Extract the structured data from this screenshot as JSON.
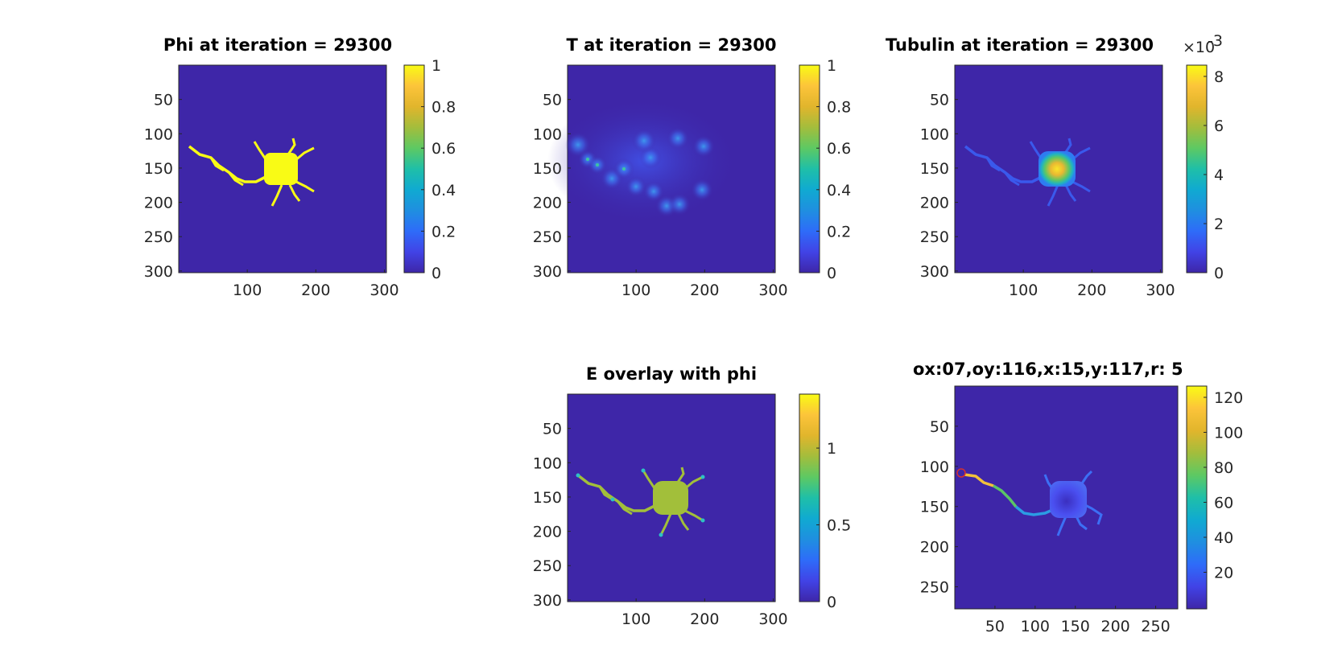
{
  "figure": {
    "background": "#ffffff",
    "colormap_parula": [
      "#3e26a8",
      "#4143e6",
      "#2e6cf9",
      "#1f8fe0",
      "#10aad1",
      "#1fbfa8",
      "#5dc963",
      "#a3bd3c",
      "#e1b52c",
      "#fcc43a",
      "#f9fb15"
    ],
    "panels": [
      {
        "id": "phi",
        "title": "Phi at iteration = 29300",
        "kind": "mask",
        "yticks": [
          "50",
          "100",
          "150",
          "200",
          "250",
          "300"
        ],
        "xticks": [
          "100",
          "200",
          "300"
        ],
        "cbar_ticks": [
          "1",
          "0.8",
          "0.6",
          "0.4",
          "0.2",
          "0"
        ],
        "cbar_exponent": "",
        "background": "#3e26a8",
        "body_color": "#f9fb15",
        "branch_color": "#f9fb15"
      },
      {
        "id": "t-field",
        "title": "T at iteration = 29300",
        "kind": "diffuse",
        "yticks": [
          "50",
          "100",
          "150",
          "200",
          "250",
          "300"
        ],
        "xticks": [
          "100",
          "200",
          "300"
        ],
        "cbar_ticks": [
          "1",
          "0.8",
          "0.6",
          "0.4",
          "0.2",
          "0"
        ],
        "cbar_exponent": "",
        "background": "#3e26a8",
        "glow_color": "#4a63f0",
        "dot_color": "#3fc2a4"
      },
      {
        "id": "tubulin",
        "title": "Tubulin at iteration = 29300",
        "kind": "tubulin",
        "yticks": [
          "50",
          "100",
          "150",
          "200",
          "250",
          "300"
        ],
        "xticks": [
          "100",
          "200",
          "300"
        ],
        "cbar_ticks": [
          "8",
          "6",
          "4",
          "2",
          "0"
        ],
        "cbar_exponent": "×10",
        "cbar_exponent_power": "-3",
        "background": "#3e26a8",
        "branch_color": "#3a59ec",
        "body_outer": "#24b8b3",
        "body_inner": "#f6c63a"
      },
      {
        "id": "e-overlay",
        "title": "E overlay with phi",
        "kind": "overlay",
        "yticks": [
          "50",
          "100",
          "150",
          "200",
          "250",
          "300"
        ],
        "xticks": [
          "100",
          "200",
          "300"
        ],
        "cbar_ticks": [
          "1",
          "0.5",
          "0"
        ],
        "cbar_exponent": "",
        "background": "#3e26a8",
        "body_color": "#a2bf3a",
        "branch_color": "#a2bf3a",
        "tip_color": "#2ec1c4"
      },
      {
        "id": "trace",
        "title": "ox:07,oy:116,x:15,y:117,r: 5",
        "kind": "trace",
        "yticks": [
          "50",
          "100",
          "150",
          "200",
          "250"
        ],
        "xticks": [
          "50",
          "100",
          "150",
          "200",
          "250"
        ],
        "cbar_ticks": [
          "120",
          "100",
          "80",
          "60",
          "40",
          "20"
        ],
        "cbar_exponent": "",
        "background": "#3e26a8",
        "body_color": "#4a55ee",
        "branch_color": "#3c6ff5",
        "marker_color": "#d43030"
      }
    ]
  }
}
